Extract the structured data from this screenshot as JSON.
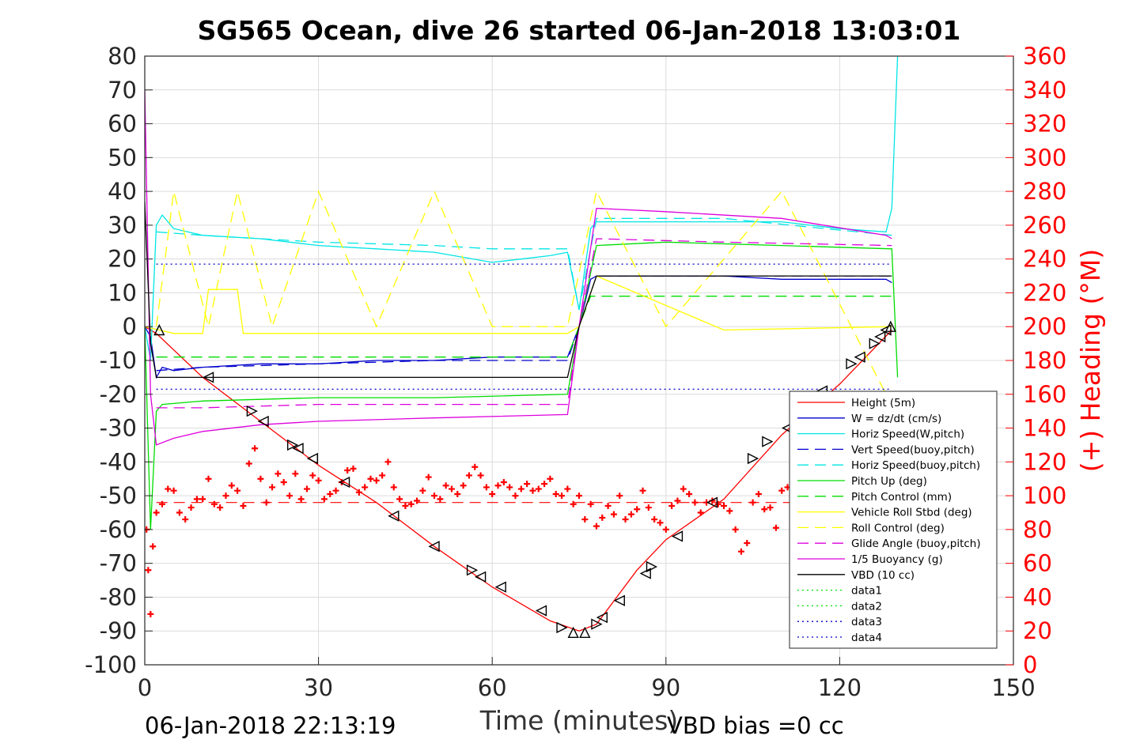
{
  "chart_data": {
    "type": "line",
    "title": "SG565 Ocean, dive 26 started 06-Jan-2018 13:03:01",
    "xlabel": "Time (minutes)",
    "ylabel_right": "(+) Heading (°M)",
    "ylabel_left": "",
    "xlim": [
      0,
      150
    ],
    "ylim": [
      -100,
      80
    ],
    "ylim_right": [
      0,
      360
    ],
    "xticks": [
      "0",
      "30",
      "60",
      "90",
      "120",
      "150"
    ],
    "yticks": [
      "80",
      "70",
      "60",
      "50",
      "40",
      "30",
      "20",
      "10",
      "0",
      "-10",
      "-20",
      "-30",
      "-40",
      "-50",
      "-60",
      "-70",
      "-80",
      "-90",
      "-100"
    ],
    "yticks_right": [
      "360",
      "340",
      "320",
      "300",
      "280",
      "260",
      "240",
      "220",
      "200",
      "180",
      "160",
      "140",
      "120",
      "100",
      "80",
      "60",
      "40",
      "20",
      "0"
    ],
    "grid": true,
    "legend_position": "bottom-right",
    "footer_left": "06-Jan-2018 22:13:19",
    "footer_right": "VBD bias =0 cc",
    "colors": {
      "red": "#ff0000",
      "blue": "#0000cc",
      "cyan": "#00e5e5",
      "green": "#00dd00",
      "yellow": "#ffff00",
      "magenta": "#dd00dd",
      "black": "#000000"
    },
    "series": [
      {
        "name": "Height (5m)",
        "color": "#ff0000",
        "style": "solid",
        "x": [
          0,
          1,
          2,
          10,
          20,
          30,
          40,
          50,
          60,
          70,
          75,
          78,
          85,
          90,
          100,
          110,
          120,
          129
        ],
        "y": [
          0,
          -1,
          -2,
          -15,
          -28,
          -41,
          -52,
          -65,
          -77,
          -87,
          -90,
          -88,
          -72,
          -63,
          -51,
          -32,
          -17,
          -1
        ]
      },
      {
        "name": "W = dz/dt (cm/s)",
        "color": "#0000cc",
        "style": "solid",
        "x": [
          0,
          1,
          2,
          3,
          5,
          10,
          20,
          30,
          40,
          50,
          60,
          70,
          73,
          75,
          77,
          78,
          80,
          90,
          100,
          110,
          120,
          128,
          129
        ],
        "y": [
          0,
          -3,
          -15,
          -12,
          -13,
          -12,
          -11,
          -11,
          -10,
          -10,
          -9,
          -9,
          -9,
          0,
          14,
          15,
          15,
          15,
          15,
          14,
          14,
          14,
          13
        ]
      },
      {
        "name": "Horiz Speed(W,pitch)",
        "color": "#00e5e5",
        "style": "solid",
        "x": [
          0,
          1,
          2,
          3,
          5,
          10,
          20,
          30,
          40,
          50,
          60,
          65,
          70,
          73,
          75,
          77,
          78,
          80,
          90,
          100,
          110,
          120,
          128,
          129,
          130
        ],
        "y": [
          0,
          -10,
          30,
          33,
          29,
          27,
          26,
          24,
          23,
          22,
          19,
          20,
          21,
          22,
          5,
          29,
          31,
          31,
          31,
          31,
          31,
          29,
          28,
          35,
          80
        ]
      },
      {
        "name": "Vert Speed(buoy,pitch)",
        "color": "#0000cc",
        "style": "dashed",
        "x": [
          2,
          10,
          30,
          50,
          73,
          75,
          78,
          129
        ],
        "y": [
          -13,
          -12,
          -11,
          -10,
          -10,
          0,
          15,
          15
        ]
      },
      {
        "name": "Horiz Speed(buoy,pitch)",
        "color": "#00e5e5",
        "style": "dashed",
        "x": [
          2,
          10,
          30,
          50,
          60,
          73,
          75,
          78,
          100,
          129
        ],
        "y": [
          28,
          27,
          25,
          24,
          23,
          23,
          5,
          32,
          32,
          27
        ]
      },
      {
        "name": "Pitch Up (deg)",
        "color": "#00dd00",
        "style": "solid",
        "x": [
          0,
          1,
          2,
          3,
          10,
          30,
          50,
          73,
          75,
          78,
          90,
          110,
          129,
          130
        ],
        "y": [
          0,
          -60,
          -25,
          -23,
          -22,
          -21,
          -21,
          -20,
          0,
          24,
          25,
          24,
          23,
          -15
        ]
      },
      {
        "name": "Pitch Control (mm)",
        "color": "#00dd00",
        "style": "dashed",
        "x": [
          2,
          73,
          75,
          77,
          129
        ],
        "y": [
          -9,
          -9,
          0,
          9,
          9
        ]
      },
      {
        "name": "Vehicle Roll Stbd (deg)",
        "color": "#ffff00",
        "style": "solid",
        "x": [
          0,
          5,
          10,
          11,
          16,
          17,
          50,
          73,
          75,
          78,
          100,
          129
        ],
        "y": [
          0,
          -2,
          -2,
          11,
          11,
          -2,
          -2,
          -2,
          0,
          15,
          -1,
          0
        ]
      },
      {
        "name": "Roll Control (deg)",
        "color": "#ffff00",
        "style": "dashed",
        "x": [
          2,
          5,
          11,
          16,
          22,
          30,
          40,
          50,
          60,
          73,
          78,
          90,
          110,
          128
        ],
        "y": [
          0,
          40,
          0,
          40,
          0,
          40,
          0,
          40,
          0,
          0,
          40,
          0,
          40,
          -20
        ]
      },
      {
        "name": "Glide Angle (buoy,pitch)",
        "color": "#dd00dd",
        "style": "dashed",
        "x": [
          2,
          10,
          30,
          50,
          73,
          75,
          78,
          100,
          129
        ],
        "y": [
          -24,
          -24,
          -23,
          -23,
          -23,
          0,
          26,
          25,
          24
        ]
      },
      {
        "name": "1/5 Buoyancy (g)",
        "color": "#dd00dd",
        "style": "solid",
        "x": [
          0,
          1,
          2,
          5,
          10,
          20,
          30,
          50,
          73,
          75,
          78,
          90,
          110,
          128,
          129
        ],
        "y": [
          70,
          -20,
          -35,
          -33,
          -31,
          -29,
          -28,
          -27,
          -26,
          0,
          35,
          34,
          32,
          27,
          26
        ]
      },
      {
        "name": "VBD (10 cc)",
        "color": "#000000",
        "style": "solid",
        "x": [
          0,
          1,
          2,
          73,
          75,
          78,
          129
        ],
        "y": [
          37,
          -5,
          -15,
          -15,
          0,
          15,
          15
        ]
      },
      {
        "name": "data1",
        "color": "#00dd00",
        "style": "dotted",
        "x": [],
        "y": []
      },
      {
        "name": "data2",
        "color": "#00dd00",
        "style": "dotted",
        "x": [],
        "y": []
      },
      {
        "name": "data3",
        "color": "#0000cc",
        "style": "dotted",
        "x": [
          2,
          129
        ],
        "y": [
          -18.5,
          -18.5
        ]
      },
      {
        "name": "data4",
        "color": "#0000cc",
        "style": "dotted",
        "x": [
          2,
          129
        ],
        "y": [
          18.5,
          18.5
        ]
      }
    ],
    "mean_heading": {
      "color": "#ff0000",
      "style": "dashed",
      "y": -52,
      "x": [
        2,
        129
      ]
    },
    "heading_trace": {
      "axis": "right",
      "color": "#ff0000",
      "marker": "+",
      "x": [
        0.3,
        0.6,
        1.0,
        1.4,
        2.0,
        3,
        4,
        5,
        6,
        7,
        8,
        9,
        10,
        11,
        12,
        13,
        14,
        15,
        16,
        17,
        18,
        19,
        20,
        21,
        22,
        23,
        24,
        25,
        26,
        27,
        28,
        29,
        30,
        31,
        32,
        33,
        34,
        35,
        36,
        37,
        38,
        39,
        40,
        41,
        42,
        43,
        44,
        45,
        46,
        47,
        48,
        49,
        50,
        51,
        52,
        53,
        54,
        55,
        56,
        57,
        58,
        59,
        60,
        61,
        62,
        63,
        64,
        65,
        66,
        67,
        68,
        69,
        70,
        71,
        72,
        73,
        74,
        75,
        76,
        77,
        78,
        79,
        80,
        81,
        82,
        83,
        84,
        85,
        86,
        87,
        88,
        89,
        90,
        91,
        92,
        93,
        94,
        95,
        96,
        97,
        98,
        99,
        100,
        101,
        102,
        103,
        104,
        105,
        106,
        107,
        108,
        109,
        110,
        111
      ],
      "y": [
        80,
        56,
        30,
        70,
        90,
        95,
        104,
        103,
        90,
        86,
        93,
        98,
        98,
        110,
        95,
        93,
        100,
        106,
        103,
        94,
        119,
        128,
        110,
        96,
        105,
        113,
        108,
        100,
        113,
        98,
        104,
        112,
        109,
        98,
        101,
        103,
        108,
        115,
        116,
        102,
        105,
        110,
        109,
        112,
        120,
        105,
        98,
        94,
        95,
        97,
        103,
        111,
        100,
        98,
        106,
        104,
        101,
        106,
        112,
        117,
        112,
        105,
        101,
        106,
        108,
        105,
        100,
        104,
        107,
        103,
        104,
        107,
        110,
        101,
        100,
        104,
        95,
        100,
        86,
        95,
        82,
        87,
        94,
        89,
        100,
        86,
        89,
        92,
        103,
        93,
        86,
        84,
        80,
        94,
        97,
        104,
        101,
        96,
        90,
        96,
        97,
        95,
        94,
        91,
        80,
        67,
        72,
        96,
        101,
        92,
        93,
        81,
        103,
        105
      ]
    },
    "vertex_markers": [
      {
        "shape": "up",
        "x": 2.5,
        "y": -1
      },
      {
        "shape": "left",
        "x": 11.0,
        "y": -15
      },
      {
        "shape": "right",
        "x": 18.5,
        "y": -25
      },
      {
        "shape": "left",
        "x": 20.5,
        "y": -28
      },
      {
        "shape": "right",
        "x": 25.5,
        "y": -35
      },
      {
        "shape": "left",
        "x": 26.5,
        "y": -36
      },
      {
        "shape": "left",
        "x": 29.0,
        "y": -39
      },
      {
        "shape": "left",
        "x": 34.5,
        "y": -46
      },
      {
        "shape": "left",
        "x": 43.0,
        "y": -56
      },
      {
        "shape": "left",
        "x": 50.0,
        "y": -65
      },
      {
        "shape": "right",
        "x": 56.5,
        "y": -72
      },
      {
        "shape": "left",
        "x": 58.0,
        "y": -74
      },
      {
        "shape": "left",
        "x": 61.5,
        "y": -77
      },
      {
        "shape": "left",
        "x": 68.5,
        "y": -84
      },
      {
        "shape": "right",
        "x": 72.0,
        "y": -89
      },
      {
        "shape": "up",
        "x": 74.0,
        "y": -90.5
      },
      {
        "shape": "up",
        "x": 76.0,
        "y": -90.5
      },
      {
        "shape": "right",
        "x": 78.0,
        "y": -88
      },
      {
        "shape": "left",
        "x": 79.0,
        "y": -86
      },
      {
        "shape": "left",
        "x": 82.0,
        "y": -81
      },
      {
        "shape": "left",
        "x": 86.5,
        "y": -73
      },
      {
        "shape": "right",
        "x": 87.5,
        "y": -71
      },
      {
        "shape": "left",
        "x": 92.0,
        "y": -62
      },
      {
        "shape": "left",
        "x": 98.0,
        "y": -52
      },
      {
        "shape": "right",
        "x": 105.0,
        "y": -39
      },
      {
        "shape": "right",
        "x": 107.5,
        "y": -34
      },
      {
        "shape": "left",
        "x": 111.0,
        "y": -30
      },
      {
        "shape": "right",
        "x": 113.5,
        "y": -26
      },
      {
        "shape": "left",
        "x": 117.0,
        "y": -19
      },
      {
        "shape": "right",
        "x": 122.0,
        "y": -11
      },
      {
        "shape": "left",
        "x": 123.5,
        "y": -9
      },
      {
        "shape": "right",
        "x": 126.0,
        "y": -5
      },
      {
        "shape": "left",
        "x": 127.0,
        "y": -3
      },
      {
        "shape": "left",
        "x": 128.0,
        "y": -1
      },
      {
        "shape": "up",
        "x": 128.8,
        "y": 0
      }
    ]
  }
}
